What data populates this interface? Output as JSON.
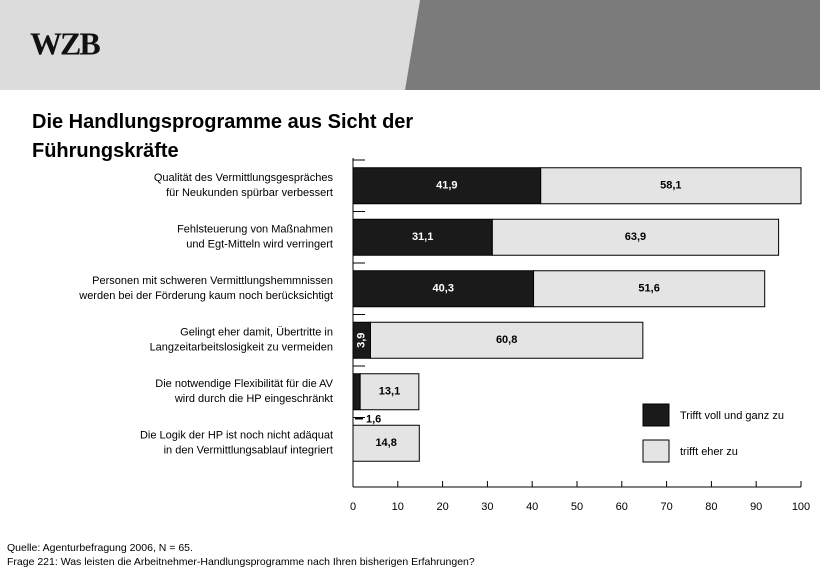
{
  "logo": "WZB",
  "chart_data": {
    "type": "stacked_barh",
    "title": "Die Handlungsprogramme aus Sicht der Führungskräfte",
    "categories": [
      [
        "Qualität des Vermittlungsgespräches",
        "für Neukunden spürbar verbessert"
      ],
      [
        "Fehlsteuerung von Maßnahmen",
        "und Egt-Mitteln wird verringert"
      ],
      [
        "Personen mit schweren Vermittlungshemmnissen",
        "werden bei der Förderung kaum noch berücksichtigt"
      ],
      [
        "Gelingt eher damit, Übertritte in",
        "Langzeitarbeitslosigkeit zu vermeiden"
      ],
      [
        "Die notwendige Flexibilität für die AV",
        "wird durch die HP eingeschränkt"
      ],
      [
        "Die Logik der HP ist noch nicht adäquat",
        "in den Vermittlungsablauf integriert"
      ]
    ],
    "series": [
      {
        "name": "Trifft voll und ganz zu",
        "color": "#1a1a1a",
        "label_color": "#ffffff",
        "values": [
          41.9,
          31.1,
          40.3,
          3.9,
          1.6,
          null
        ],
        "value_labels": [
          "41,9",
          "31,1",
          "40,3",
          "3,9",
          "1,6",
          null
        ]
      },
      {
        "name": "trifft eher zu",
        "color": "#e4e4e4",
        "label_color": "#000000",
        "values": [
          58.1,
          63.9,
          51.6,
          60.8,
          13.1,
          14.8
        ],
        "value_labels": [
          "58,1",
          "63,9",
          "51,6",
          "60,8",
          "13,1",
          "14,8"
        ]
      }
    ],
    "xlim": [
      0,
      100
    ],
    "xticks": [
      0,
      10,
      20,
      30,
      40,
      50,
      60,
      70,
      80,
      90,
      100
    ],
    "notes": [
      "Quelle: Agenturbefragung 2006, N = 65.",
      "Frage 221: Was leisten die Arbeitnehmer-Handlungsprogramme nach Ihren bisherigen Erfahrungen?"
    ]
  }
}
